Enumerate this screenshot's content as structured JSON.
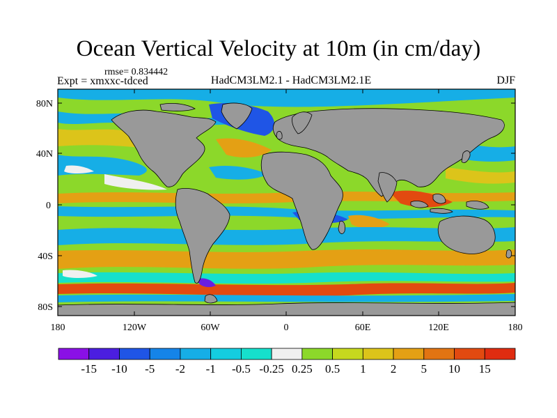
{
  "header": {
    "title": "Ocean Vertical Velocity at 10m (in cm/day)",
    "rmse": "rmse= 0.834442",
    "expt": "Expt = xmxxc-tdced",
    "comparison": "HadCM3LM2.1 - HadCM3LM2.1E",
    "season": "DJF"
  },
  "map": {
    "lat_ticks": [
      "80N",
      "40N",
      "0",
      "40S",
      "80S"
    ],
    "lon_ticks": [
      "180",
      "120W",
      "60W",
      "0",
      "60E",
      "120E",
      "180"
    ],
    "land_color": "#999999",
    "coastline_color": "#000000"
  },
  "colorbar": {
    "labels": [
      "-15",
      "-10",
      "-5",
      "-2",
      "-1",
      "-0.5",
      "-0.25",
      "0.25",
      "0.5",
      "1",
      "2",
      "5",
      "10",
      "15"
    ],
    "colors": [
      "#8a10e6",
      "#4b1ee0",
      "#1f55e6",
      "#1584e8",
      "#16aee6",
      "#14cde0",
      "#16e0cc",
      "#f0f0f0",
      "#8cd82a",
      "#c6d81e",
      "#dcc41a",
      "#e4a014",
      "#e27412",
      "#e24a10",
      "#e02c10"
    ]
  },
  "palette": {
    "ocean_strong_neg": "#1f55e6",
    "ocean_neg": "#16aee6",
    "ocean_weak_neg": "#16e0cc",
    "ocean_near_zero": "#f0f0f0",
    "ocean_weak_pos": "#8cd82a",
    "ocean_pos": "#dcc41a",
    "ocean_strong_pos": "#e4a014",
    "ocean_extreme_pos": "#e24a10"
  }
}
